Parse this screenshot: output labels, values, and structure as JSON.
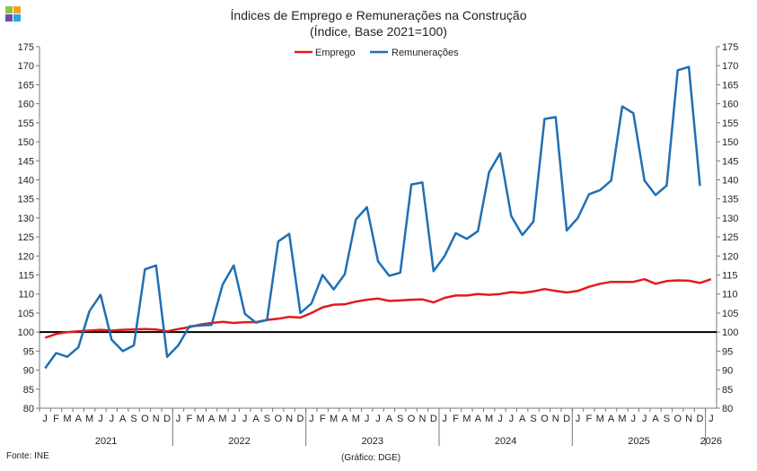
{
  "title": "Índices de Emprego e Remunerações na Construção",
  "subtitle": "(Índice, Base 2021=100)",
  "source": "Fonte: INE",
  "credit": "(Gráfico: DGE)",
  "colors": {
    "emprego": "#e31a1c",
    "remuneracoes": "#1f6fb4",
    "baseline": "#000000"
  },
  "chart_data": {
    "type": "line",
    "title": "Índices de Emprego e Remunerações na Construção",
    "subtitle": "(Índice, Base 2021=100)",
    "ylim": [
      80,
      175
    ],
    "yticks": [
      80,
      85,
      90,
      95,
      100,
      105,
      110,
      115,
      120,
      125,
      130,
      135,
      140,
      145,
      150,
      155,
      160,
      165,
      170,
      175
    ],
    "baseline": 100,
    "legend": "top-center",
    "month_labels": [
      "J",
      "F",
      "M",
      "A",
      "M",
      "J",
      "J",
      "A",
      "S",
      "O",
      "N",
      "D"
    ],
    "years": [
      "2021",
      "2022",
      "2023",
      "2024",
      "2025",
      "2026"
    ],
    "series": [
      {
        "name": "Emprego",
        "values": [
          98.5,
          99.5,
          100.0,
          100.2,
          100.4,
          100.6,
          100.4,
          100.6,
          100.7,
          100.8,
          100.7,
          100.2,
          100.8,
          101.3,
          102.0,
          102.4,
          102.7,
          102.4,
          102.6,
          102.6,
          103.2,
          103.5,
          104.0,
          103.8,
          105.0,
          106.5,
          107.2,
          107.3,
          108.0,
          108.5,
          108.8,
          108.2,
          108.3,
          108.5,
          108.6,
          107.8,
          109.0,
          109.6,
          109.6,
          110.0,
          109.8,
          110.0,
          110.5,
          110.3,
          110.7,
          111.3,
          110.8,
          110.4,
          110.8,
          111.9,
          112.7,
          113.2,
          113.2,
          113.2,
          113.9,
          112.7,
          113.4,
          113.6,
          113.5,
          112.9,
          113.9
        ]
      },
      {
        "name": "Remunerações",
        "values": [
          90.5,
          94.5,
          93.5,
          96.0,
          105.5,
          109.8,
          98.0,
          95.0,
          96.5,
          116.5,
          117.5,
          93.5,
          96.5,
          101.5,
          101.7,
          101.9,
          112.5,
          117.5,
          104.8,
          102.5,
          103.2,
          123.8,
          125.8,
          105.0,
          107.5,
          115.0,
          111.2,
          115.2,
          129.6,
          132.8,
          118.6,
          114.8,
          115.6,
          138.8,
          139.3,
          116.0,
          120.0,
          126.0,
          124.5,
          126.5,
          142.0,
          147.0,
          130.5,
          125.5,
          129.0,
          156.0,
          156.5,
          126.7,
          130.0,
          136.2,
          137.3,
          139.8,
          159.3,
          157.5,
          139.8,
          136.0,
          138.5,
          168.8,
          169.7,
          138.4
        ]
      }
    ]
  }
}
